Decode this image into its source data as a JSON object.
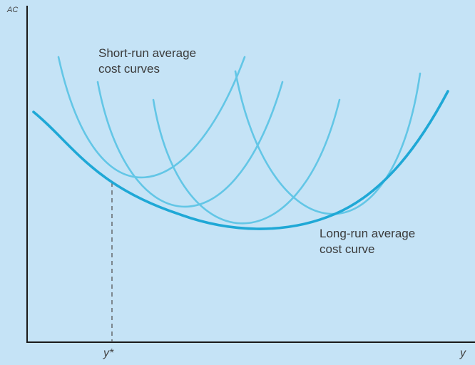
{
  "axes": {
    "y_label": "AC",
    "x_label": "y",
    "x_marker_label": "y*"
  },
  "annotations": {
    "short_run": [
      "Short-run average",
      "cost curves"
    ],
    "long_run": [
      "Long-run average",
      "cost curve"
    ]
  },
  "colors": {
    "background": "#c5e3f6",
    "axis": "#1a1a1a",
    "short_run_curve": "#63c6e6",
    "long_run_curve": "#1fa8d6",
    "guide_line": "#555555"
  }
}
